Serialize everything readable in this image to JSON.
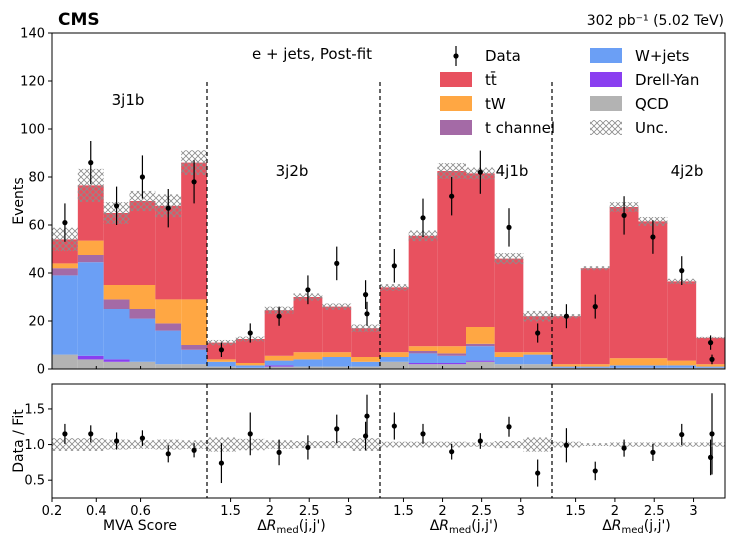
{
  "header": {
    "experiment": "CMS",
    "luminosity": "302 pb⁻¹ (5.02 TeV)",
    "channel": "e + jets, Post-fit"
  },
  "chart_data": {
    "type": "bar",
    "stacked": true,
    "ylabel": "Events",
    "ylim": [
      0,
      140
    ],
    "ratio_ylabel": "Data / Fit",
    "ratio_ylim": [
      0.25,
      1.85
    ],
    "regions": [
      {
        "label": "3j1b",
        "xlabel": "MVA Score",
        "xlim": [
          0.2,
          0.9
        ],
        "xticks": [
          "0.2",
          "0.4",
          "0.6"
        ],
        "xtick_values": [
          0.2,
          0.4,
          0.6
        ],
        "bins": 6
      },
      {
        "label": "3j2b",
        "xlabel": "ΔR",
        "xlim": [
          1.2,
          3.4
        ],
        "xticks": [
          "1.5",
          "2",
          "2.5",
          "3"
        ],
        "xtick_values": [
          1.5,
          2.0,
          2.5,
          3.0
        ],
        "bins": 6
      },
      {
        "label": "4j1b",
        "xlabel": "ΔR",
        "xlim": [
          1.2,
          3.4
        ],
        "xticks": [
          "1.5",
          "2",
          "2.5",
          "3"
        ],
        "xtick_values": [
          1.5,
          2.0,
          2.5,
          3.0
        ],
        "bins": 6
      },
      {
        "label": "4j2b",
        "xlabel": "ΔR",
        "xlim": [
          1.2,
          3.4
        ],
        "xticks": [
          "1.5",
          "2",
          "2.5",
          "3"
        ],
        "xtick_values": [
          1.5,
          2.0,
          2.5,
          3.0
        ],
        "bins": 6
      }
    ],
    "xlabel_sub": "med",
    "xlabel_suffix": "(j,j')",
    "yticks": [
      0,
      20,
      40,
      60,
      80,
      100,
      120,
      140
    ],
    "ratio_yticks": [
      0.5,
      1.0,
      1.5
    ],
    "series": [
      {
        "name": "QCD",
        "color": "#b3b3b3",
        "values": [
          6,
          4,
          3,
          3,
          2,
          2,
          1,
          0.5,
          1,
          1,
          1,
          1,
          3,
          2,
          2,
          3,
          2,
          2,
          0.5,
          0.5,
          0.5,
          0.5,
          0.5,
          0.5
        ]
      },
      {
        "name": "Drell-Yan",
        "color": "#8a3ff0",
        "values": [
          0,
          1.5,
          1,
          0,
          0,
          0,
          0,
          0,
          0.5,
          0,
          0,
          0,
          0,
          0.5,
          0.5,
          0.5,
          0,
          0,
          0,
          0,
          0,
          0,
          0,
          0
        ]
      },
      {
        "name": "W+jets",
        "color": "#6b9ff5",
        "values": [
          33,
          39,
          21,
          18,
          14,
          6,
          2,
          1,
          2,
          3,
          4,
          2,
          2,
          4,
          3,
          6,
          3,
          4,
          0.5,
          0.5,
          1,
          1,
          1,
          0.5
        ]
      },
      {
        "name": "t channel",
        "color": "#a46aa6",
        "values": [
          3,
          3,
          4,
          4,
          3,
          2,
          0,
          0,
          0,
          0,
          0,
          0,
          0,
          1,
          1,
          1,
          0,
          0,
          0,
          0,
          0,
          0,
          0,
          0
        ]
      },
      {
        "name": "tW",
        "color": "#ffa743",
        "values": [
          2,
          6,
          6,
          10,
          10,
          19,
          1,
          1,
          2,
          3,
          2,
          2,
          2,
          2,
          3,
          7,
          2,
          1,
          1,
          1,
          3,
          3,
          2,
          1
        ]
      },
      {
        "name": "tt̄",
        "color": "#e8515f",
        "values": [
          10,
          23,
          30,
          35,
          39,
          57,
          7,
          10,
          19,
          23,
          19,
          12,
          27,
          46,
          73,
          64,
          39,
          15,
          20,
          40,
          63,
          57,
          33,
          11
        ]
      }
    ],
    "unc_band": [
      0.09,
      0.09,
      0.07,
      0.06,
      0.07,
      0.06,
      0.1,
      0.08,
      0.06,
      0.05,
      0.05,
      0.09,
      0.04,
      0.04,
      0.04,
      0.03,
      0.05,
      0.1,
      0.04,
      0.02,
      0.03,
      0.03,
      0.03,
      0.03
    ],
    "data": [
      61,
      86,
      68,
      80,
      67,
      78,
      8,
      15,
      22,
      33,
      44,
      31,
      23,
      43,
      63,
      72,
      82,
      59,
      15,
      22,
      26,
      64,
      55,
      41,
      11,
      4
    ],
    "data_points": {
      "x": [
        1,
        2,
        3,
        4,
        5,
        6,
        7,
        8,
        9,
        10,
        11,
        12,
        13,
        14,
        15,
        16,
        17,
        18,
        19,
        20,
        21,
        22,
        23,
        24
      ],
      "y": [
        61,
        86,
        68,
        80,
        67,
        78,
        8,
        15,
        22,
        33,
        44,
        31,
        43,
        63,
        72,
        82,
        59,
        15,
        22,
        26,
        64,
        55,
        41,
        11
      ],
      "err": [
        8,
        9,
        8,
        9,
        8,
        9,
        3,
        4,
        4,
        6,
        7,
        6,
        7,
        8,
        8,
        9,
        8,
        4,
        5,
        5,
        8,
        7,
        6,
        3
      ]
    },
    "extra_points": [
      {
        "after_bin": 12,
        "y": 23,
        "err": 5,
        "ratio": 1.4,
        "ratio_err": 0.3
      },
      {
        "after_bin": 24,
        "y": 4,
        "err": 2,
        "ratio": 1.15,
        "ratio_err": 0.57
      }
    ],
    "ratio": [
      1.15,
      1.15,
      1.05,
      1.09,
      0.87,
      0.92,
      0.74,
      1.15,
      0.89,
      0.96,
      1.22,
      1.12,
      1.26,
      1.15,
      0.9,
      1.05,
      1.25,
      0.6,
      0.99,
      0.63,
      0.95,
      0.89,
      1.14,
      0.82
    ],
    "ratio_err": [
      0.14,
      0.12,
      0.12,
      0.11,
      0.12,
      0.1,
      0.28,
      0.3,
      0.18,
      0.17,
      0.2,
      0.2,
      0.19,
      0.14,
      0.11,
      0.11,
      0.14,
      0.19,
      0.24,
      0.13,
      0.12,
      0.12,
      0.15,
      0.25
    ],
    "legend": [
      {
        "name": "Data",
        "kind": "data"
      },
      {
        "name": "W+jets",
        "kind": "box",
        "color": "#6b9ff5"
      },
      {
        "name": "tt̄",
        "kind": "box",
        "color": "#e8515f"
      },
      {
        "name": "Drell-Yan",
        "kind": "box",
        "color": "#8a3ff0"
      },
      {
        "name": "tW",
        "kind": "box",
        "color": "#ffa743"
      },
      {
        "name": "QCD",
        "kind": "box",
        "color": "#b3b3b3"
      },
      {
        "name": "t channel",
        "kind": "box",
        "color": "#a46aa6"
      },
      {
        "name": "Unc.",
        "kind": "hatch"
      }
    ],
    "legend_position": "top-right"
  }
}
